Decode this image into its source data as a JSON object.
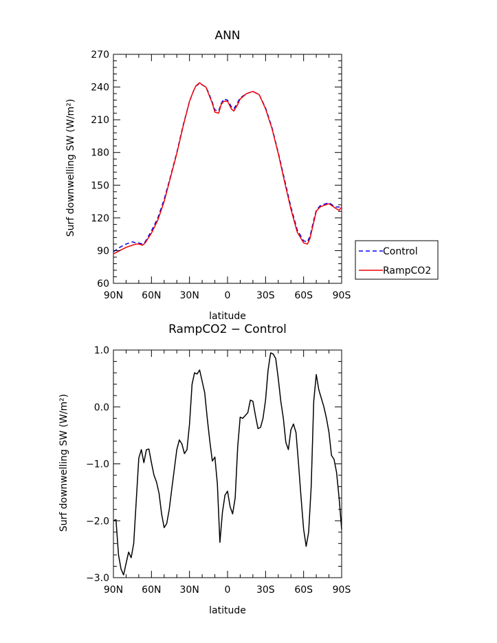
{
  "chart_data": [
    {
      "type": "line",
      "title": "ANN",
      "xlabel": "latitude",
      "ylabel": "Surf downwelling SW (W/m²)",
      "ylim": [
        60,
        270
      ],
      "xlim": [
        90,
        -90
      ],
      "yticks": [
        "60",
        "90",
        "120",
        "150",
        "180",
        "210",
        "240",
        "270"
      ],
      "xticks": [
        "90N",
        "60N",
        "30N",
        "0",
        "30S",
        "60S",
        "90S"
      ],
      "legend_position": "right-middle",
      "series": [
        {
          "name": "Control",
          "color": "#0000ee",
          "dash": true,
          "x": [
            90,
            85,
            80,
            75,
            72,
            70,
            67,
            65,
            60,
            55,
            50,
            45,
            40,
            35,
            30,
            27,
            25,
            22,
            20,
            17,
            15,
            12,
            10,
            7,
            5,
            3,
            0,
            -3,
            -5,
            -8,
            -10,
            -15,
            -20,
            -25,
            -30,
            -35,
            -40,
            -45,
            -50,
            -55,
            -60,
            -63,
            -65,
            -68,
            -70,
            -73,
            -75,
            -80,
            -85,
            -88,
            -90
          ],
          "y": [
            89,
            93,
            96,
            98,
            97,
            97,
            96,
            98,
            108,
            120,
            137,
            158,
            180,
            205,
            227,
            236,
            241,
            243,
            242,
            240,
            235,
            226,
            219,
            218,
            225,
            229,
            228,
            222,
            220,
            226,
            230,
            234,
            236,
            233,
            221,
            203,
            180,
            155,
            130,
            109,
            99,
            98,
            103,
            118,
            127,
            131,
            132,
            134,
            130,
            130,
            131
          ]
        },
        {
          "name": "RampCO2",
          "color": "#ee0000",
          "dash": false,
          "x": [
            90,
            85,
            80,
            75,
            72,
            70,
            67,
            65,
            60,
            55,
            50,
            45,
            40,
            35,
            30,
            27,
            25,
            22,
            20,
            17,
            15,
            12,
            10,
            7,
            5,
            3,
            0,
            -3,
            -5,
            -8,
            -10,
            -15,
            -20,
            -25,
            -30,
            -35,
            -40,
            -45,
            -50,
            -55,
            -60,
            -63,
            -65,
            -68,
            -70,
            -73,
            -75,
            -80,
            -85,
            -88,
            -90
          ],
          "y": [
            87,
            90,
            93,
            95,
            96,
            96,
            95,
            97,
            106,
            118,
            135,
            157,
            179,
            204,
            227,
            236,
            241,
            244,
            242,
            240,
            234,
            225,
            217,
            216,
            224,
            227,
            227,
            220,
            218,
            224,
            229,
            234,
            236,
            233,
            220,
            202,
            179,
            153,
            128,
            107,
            97,
            96,
            101,
            116,
            126,
            130,
            131,
            133,
            129,
            127,
            130
          ]
        }
      ]
    },
    {
      "type": "line",
      "title": "RampCO2 − Control",
      "xlabel": "latitude",
      "ylabel": "Surf downwelling SW (W/m²)",
      "ylim": [
        -3.0,
        1.0
      ],
      "xlim": [
        90,
        -90
      ],
      "yticks": [
        "−3.0",
        "−2.0",
        "−1.0",
        "0.0",
        "1.0"
      ],
      "xticks": [
        "90N",
        "60N",
        "30N",
        "0",
        "30S",
        "60S",
        "90S"
      ],
      "series": [
        {
          "color": "#000000",
          "x": [
            90,
            88,
            86,
            84,
            82,
            80,
            78,
            76,
            74,
            72,
            70,
            68,
            66,
            64,
            62,
            60,
            58,
            56,
            54,
            52,
            50,
            48,
            46,
            44,
            42,
            40,
            38,
            36,
            34,
            32,
            30,
            28,
            26,
            24,
            22,
            20,
            18,
            16,
            14,
            12,
            10,
            8,
            6,
            4,
            2,
            0,
            -2,
            -4,
            -6,
            -8,
            -10,
            -12,
            -14,
            -16,
            -18,
            -20,
            -22,
            -24,
            -26,
            -28,
            -30,
            -32,
            -34,
            -36,
            -38,
            -40,
            -42,
            -44,
            -46,
            -48,
            -50,
            -52,
            -54,
            -56,
            -58,
            -60,
            -62,
            -64,
            -66,
            -68,
            -70,
            -72,
            -74,
            -76,
            -78,
            -80,
            -82,
            -84,
            -86,
            -88,
            -90
          ],
          "y": [
            -2.0,
            -1.98,
            -2.6,
            -2.85,
            -2.95,
            -2.75,
            -2.55,
            -2.65,
            -2.4,
            -1.65,
            -0.9,
            -0.75,
            -0.98,
            -0.75,
            -0.74,
            -0.98,
            -1.2,
            -1.32,
            -1.52,
            -1.88,
            -2.12,
            -2.05,
            -1.8,
            -1.45,
            -1.1,
            -0.75,
            -0.58,
            -0.65,
            -0.82,
            -0.75,
            -0.3,
            0.4,
            0.6,
            0.58,
            0.65,
            0.45,
            0.25,
            -0.2,
            -0.6,
            -0.95,
            -0.88,
            -1.35,
            -2.38,
            -1.85,
            -1.55,
            -1.48,
            -1.75,
            -1.88,
            -1.6,
            -0.7,
            -0.18,
            -0.2,
            -0.15,
            -0.1,
            0.12,
            0.1,
            -0.15,
            -0.38,
            -0.36,
            -0.2,
            0.12,
            0.65,
            0.95,
            0.93,
            0.85,
            0.5,
            0.1,
            -0.2,
            -0.62,
            -0.75,
            -0.4,
            -0.3,
            -0.45,
            -1.0,
            -1.6,
            -2.15,
            -2.45,
            -2.2,
            -1.4,
            0.1,
            0.57,
            0.3,
            0.15,
            0.0,
            -0.2,
            -0.45,
            -0.85,
            -0.92,
            -1.15,
            -1.6,
            -2.15
          ]
        }
      ]
    }
  ]
}
